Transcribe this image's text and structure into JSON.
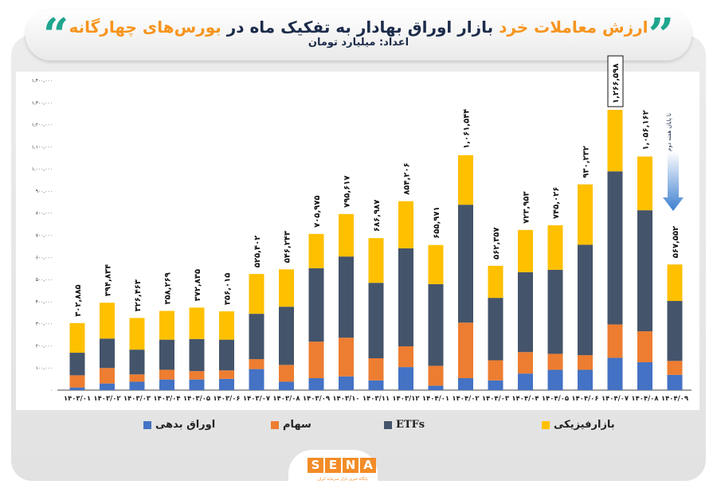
{
  "header": {
    "title_part1": "ارزش معاملات خرد",
    "title_part2": " بازار اوراق بهادار به تفکیک ماه در ",
    "title_part3": "بورس‌های چهارگانه",
    "subtitle": "اعداد: میلیارد تومان",
    "quote_left": "“",
    "quote_right": "”"
  },
  "colors": {
    "debt": "#4472C4",
    "stocks": "#ED7D31",
    "etfs": "#44546A",
    "physical": "#FFC000",
    "accent": "#F7941D",
    "teal": "#1FA58E"
  },
  "logo": {
    "text": "SENA",
    "tagline": "پایگاه خبری بازار سرمایه ایران"
  },
  "chart_data": {
    "type": "bar",
    "stacked": true,
    "title": "ارزش معاملات خرد بازار اوراق بهادار به تفکیک ماه در بورس‌های چهارگانه",
    "ylabel": "",
    "xlabel": "",
    "ylim": [
      0,
      1400000
    ],
    "grid": false,
    "legend_position": "bottom",
    "y_ticks": [
      0,
      100000,
      200000,
      300000,
      400000,
      500000,
      600000,
      700000,
      800000,
      900000,
      1000000,
      1100000,
      1200000,
      1300000,
      1400000
    ],
    "y_tick_labels": [
      "۰",
      "۱۰۰,۰۰۰",
      "۲۰۰,۰۰۰",
      "۳۰۰,۰۰۰",
      "۴۰۰,۰۰۰",
      "۵۰۰,۰۰۰",
      "۶۰۰,۰۰۰",
      "۷۰۰,۰۰۰",
      "۸۰۰,۰۰۰",
      "۹۰۰,۰۰۰",
      "۱,۰۰۰,۰۰۰",
      "۱,۱۰۰,۰۰۰",
      "۱,۲۰۰,۰۰۰",
      "۱,۳۰۰,۰۰۰",
      "۱,۴۰۰,۰۰۰"
    ],
    "categories": [
      "۱۴۰۳/۰۱",
      "۱۴۰۳/۰۲",
      "۱۴۰۳/۰۳",
      "۱۴۰۳/۰۴",
      "۱۴۰۳/۰۵",
      "۱۴۰۳/۰۶",
      "۱۴۰۳/۰۷",
      "۱۴۰۳/۰۸",
      "۱۴۰۳/۰۹",
      "۱۴۰۳/۱۰",
      "۱۴۰۳/۱۱",
      "۱۴۰۳/۱۲",
      "۱۴۰۴/۰۱",
      "۱۴۰۴/۰۲",
      "۱۴۰۴/۰۳",
      "۱۴۰۴/۰۴",
      "۱۴۰۴/۰۵",
      "۱۴۰۴/۰۶",
      "۱۴۰۴/۰۷",
      "۱۴۰۴/۰۸",
      "۱۴۰۴/۰۹"
    ],
    "series": [
      {
        "name": "اوراق بدهی",
        "key": "debt",
        "values": [
          12000,
          30000,
          38000,
          48000,
          48000,
          51000,
          95000,
          38000,
          54000,
          62000,
          44000,
          104000,
          20000,
          54000,
          44000,
          75000,
          92000,
          92000,
          146000,
          126000,
          69000
        ]
      },
      {
        "name": "سهام",
        "key": "stocks",
        "values": [
          55000,
          70000,
          33000,
          44000,
          38000,
          38000,
          45000,
          76000,
          165000,
          175000,
          100000,
          94000,
          90000,
          251000,
          91000,
          97000,
          72000,
          66000,
          151000,
          140000,
          63000
        ]
      },
      {
        "name": "ETFs",
        "key": "etfs",
        "values": [
          102000,
          133000,
          112000,
          136000,
          145000,
          139000,
          205000,
          263000,
          332000,
          367000,
          341000,
          443000,
          369000,
          533000,
          282000,
          361000,
          380000,
          499000,
          692000,
          547000,
          271000
        ]
      },
      {
        "name": "بازارفیزیکی",
        "key": "physical",
        "values": [
          134000,
          162000,
          143000,
          130000,
          142000,
          128000,
          180000,
          169000,
          155000,
          192000,
          202000,
          213000,
          177000,
          224000,
          145000,
          191000,
          201000,
          273000,
          278000,
          243000,
          165000
        ]
      }
    ],
    "totals": [
      302885,
      394834,
      326463,
      358269,
      372835,
      356015,
      525402,
      546243,
      705975,
      795617,
      686987,
      854206,
      655971,
      1061544,
      562357,
      723953,
      745026,
      930232,
      1266598,
      1056162,
      567552
    ],
    "total_labels": [
      "۳۰۲,۸۸۵",
      "۳۹۴,۸۳۴",
      "۳۲۶,۴۶۳",
      "۳۵۸,۲۶۹",
      "۳۷۲,۸۳۵",
      "۳۵۶,۰۱۵",
      "۵۲۵,۴۰۲",
      "۵۴۶,۲۴۳",
      "۷۰۵,۹۷۵",
      "۷۹۵,۶۱۷",
      "۶۸۶,۹۸۷",
      "۸۵۴,۲۰۶",
      "۶۵۵,۹۷۱",
      "۱,۰۶۱,۵۴۴",
      "۵۶۲,۳۵۷",
      "۷۲۳,۹۵۳",
      "۷۴۵,۰۲۶",
      "۹۳۰,۲۳۲",
      "۱,۲۶۶,۵۹۸",
      "۱,۰۵۶,۱۶۲",
      "۵۶۷,۵۵۲"
    ],
    "highlighted_index": 18,
    "annotation": {
      "text": "تا پایان هفته دوم",
      "category_index": 20
    }
  }
}
